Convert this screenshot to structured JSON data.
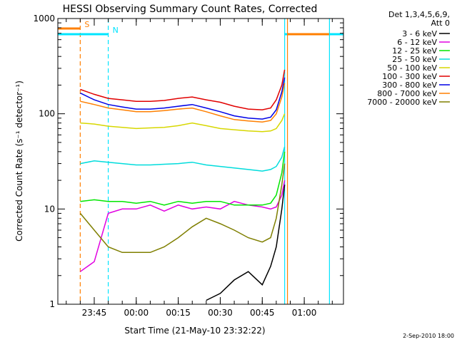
{
  "chart_data": {
    "type": "line",
    "title": "HESSI Observing Summary Count Rates, Corrected",
    "xlabel": "Start Time (21-May-10 23:32:22)",
    "ylabel": "Corrected Count Rate (s⁻¹ detector⁻¹)",
    "yscale": "log",
    "ylim": [
      1,
      1000
    ],
    "xlim": [
      "23:32",
      "01:14"
    ],
    "xtick_labels": [
      "23:45",
      "00:00",
      "00:15",
      "00:30",
      "00:45",
      "01:00"
    ],
    "ytick_labels": [
      "1",
      "10",
      "100",
      "1000"
    ],
    "grid": false,
    "legend_position": "right, outside plot",
    "legend_header": [
      "Det 1,3,4,5,6,9,",
      "Att 0"
    ],
    "markers": [
      {
        "label": "S",
        "time": "23:40",
        "color": "#ff7f00"
      },
      {
        "label": "N",
        "time": "23:50",
        "color": "#00e5ff"
      },
      {
        "label": "",
        "time": "00:53",
        "color": "#00e5ff"
      },
      {
        "label": "",
        "time": "00:54",
        "color": "#ff7f00"
      },
      {
        "label": "",
        "time": "01:09",
        "color": "#00e5ff"
      }
    ],
    "x": [
      "23:40",
      "23:45",
      "23:50",
      "23:55",
      "00:00",
      "00:05",
      "00:10",
      "00:15",
      "00:20",
      "00:25",
      "00:30",
      "00:35",
      "00:40",
      "00:45",
      "00:48",
      "00:50",
      "00:52",
      "00:53"
    ],
    "series": [
      {
        "name": "3 - 6 keV",
        "color": "#000000",
        "values": [
          null,
          null,
          null,
          null,
          null,
          null,
          null,
          null,
          null,
          1.1,
          1.3,
          1.8,
          2.2,
          1.6,
          2.5,
          4,
          10,
          18
        ]
      },
      {
        "name": "6 - 12 keV",
        "color": "#e100e1",
        "values": [
          2.2,
          2.8,
          9,
          10,
          10,
          11,
          9.5,
          11,
          10,
          10.5,
          10,
          12,
          11,
          10.5,
          10,
          10.5,
          14,
          20
        ]
      },
      {
        "name": "12 - 25 keV",
        "color": "#00e600",
        "values": [
          12,
          12.5,
          12,
          12,
          11.5,
          12,
          11,
          12,
          11.5,
          12,
          12,
          11,
          11,
          11,
          11.5,
          14,
          24,
          40
        ]
      },
      {
        "name": "25 - 50 keV",
        "color": "#00dcdc",
        "values": [
          30,
          32,
          31,
          30,
          29,
          29,
          29.5,
          30,
          31,
          29,
          28,
          27,
          26,
          25,
          26,
          28,
          35,
          45
        ]
      },
      {
        "name": "50 - 100 keV",
        "color": "#d7d700",
        "values": [
          80,
          78,
          74,
          72,
          70,
          71,
          72,
          75,
          80,
          75,
          70,
          68,
          66,
          65,
          66,
          70,
          85,
          100
        ]
      },
      {
        "name": "100 - 300 keV",
        "color": "#e10000",
        "values": [
          180,
          160,
          145,
          140,
          135,
          135,
          138,
          145,
          150,
          140,
          132,
          120,
          112,
          110,
          115,
          140,
          200,
          290
        ]
      },
      {
        "name": "300 - 800 keV",
        "color": "#0000e6",
        "values": [
          165,
          140,
          125,
          118,
          112,
          112,
          115,
          120,
          125,
          115,
          105,
          95,
          90,
          88,
          92,
          110,
          170,
          240
        ]
      },
      {
        "name": "800 - 7000 keV",
        "color": "#ff7f00",
        "values": [
          135,
          125,
          115,
          110,
          105,
          105,
          108,
          112,
          115,
          105,
          95,
          87,
          84,
          82,
          85,
          100,
          150,
          210
        ]
      },
      {
        "name": "7000 - 20000 keV",
        "color": "#7f7f00",
        "values": [
          9,
          6,
          4,
          3.5,
          3.5,
          3.5,
          4,
          5,
          6.5,
          8,
          7,
          6,
          5,
          4.5,
          5,
          8,
          18,
          30
        ]
      }
    ]
  },
  "footer": {
    "date_stamp": "2-Sep-2010 18:00"
  }
}
